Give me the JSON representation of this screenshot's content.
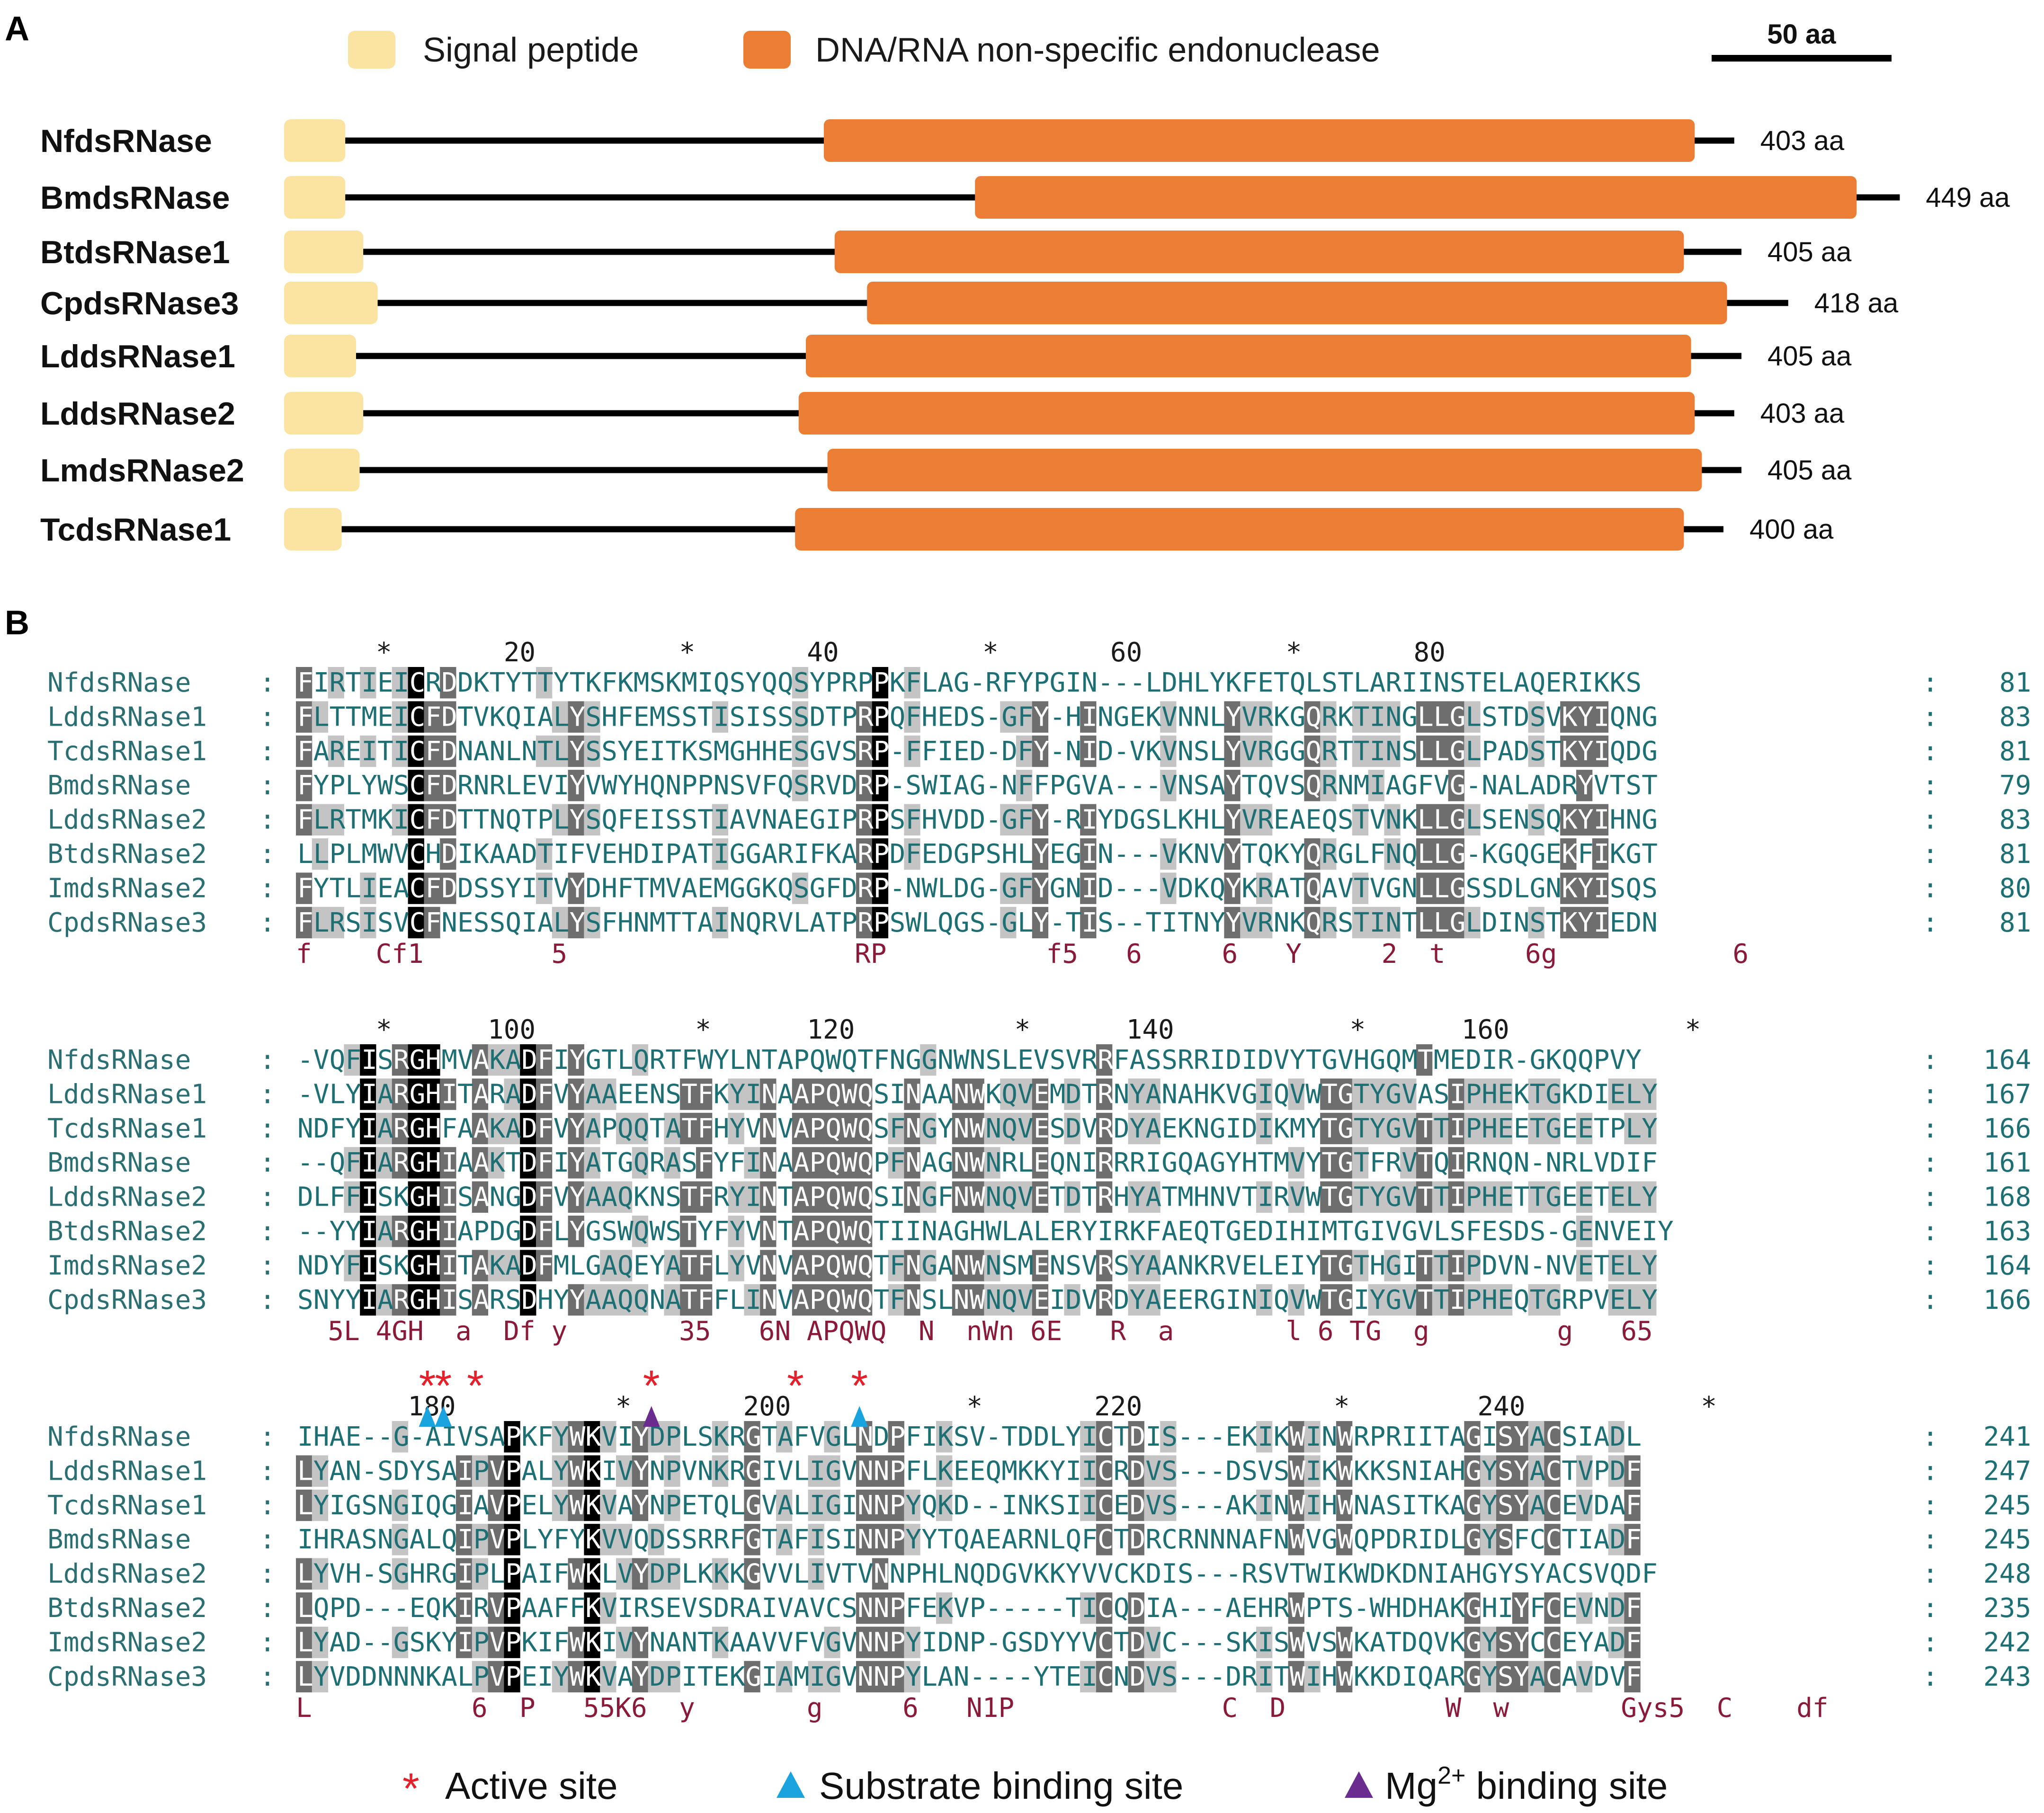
{
  "panel_a": {
    "label": "A",
    "legend": {
      "signal": {
        "label": "Signal peptide",
        "color": "#fbe3a1"
      },
      "domain": {
        "label": "DNA/RNA non-specific endonuclease",
        "color": "#ec7d35"
      }
    },
    "scale_bar": {
      "label": "50 aa",
      "length_aa": 50
    },
    "proteins": [
      {
        "name": "NfdsRNase",
        "length_label": "403 aa",
        "length_aa": 403,
        "signal": [
          1,
          17
        ],
        "domain": [
          151,
          392
        ]
      },
      {
        "name": "BmdsRNase",
        "length_label": "449 aa",
        "length_aa": 449,
        "signal": [
          1,
          17
        ],
        "domain": [
          193,
          437
        ]
      },
      {
        "name": "BtdsRNase1",
        "length_label": "405 aa",
        "length_aa": 405,
        "signal": [
          1,
          22
        ],
        "domain": [
          154,
          389
        ]
      },
      {
        "name": "CpdsRNase3",
        "length_label": "418 aa",
        "length_aa": 418,
        "signal": [
          1,
          26
        ],
        "domain": [
          163,
          401
        ]
      },
      {
        "name": "LddsRNase1",
        "length_label": "405 aa",
        "length_aa": 405,
        "signal": [
          1,
          20
        ],
        "domain": [
          146,
          391
        ]
      },
      {
        "name": "LddsRNase2",
        "length_label": "403 aa",
        "length_aa": 403,
        "signal": [
          1,
          22
        ],
        "domain": [
          144,
          392
        ]
      },
      {
        "name": "LmdsRNase2",
        "length_label": "405 aa",
        "length_aa": 405,
        "signal": [
          1,
          21
        ],
        "domain": [
          152,
          394
        ]
      },
      {
        "name": "TcdsRNase1",
        "length_label": "400 aa",
        "length_aa": 400,
        "signal": [
          1,
          16
        ],
        "domain": [
          143,
          389
        ]
      }
    ]
  },
  "panel_b": {
    "label": "B",
    "blocks": [
      {
        "ruler": "*       20         *       40         *       60         *       80",
        "rows": [
          {
            "name": "NfdsRNase",
            "seq": "FIRTIEICRDDKTYTTYTKFKMSKMIQSYQQSYPRPPKFLAG-RFYPGIN---LDHLYKFETQLSTLARIINSTELAQERIKKS",
            "end": "81"
          },
          {
            "name": "LddsRNase1",
            "seq": "FLTTMEICFDTVKQIALYSHFEMSSTISISSSDTPRPQFHEDS-GFY-HINGEKVNNLYVRKGQRKTINGLLGLSTDSVKYIQNG",
            "end": "83"
          },
          {
            "name": "TcdsRNase1",
            "seq": "FAREITICFDNANLNTLYSSYEITKSMGHHESGVSRP-FFIED-DFY-NID-VKVNSLYVRGGQRTTINSLLGLPADSTKYIQDG",
            "end": "81"
          },
          {
            "name": "BmdsRNase",
            "seq": "FYPLYWSCFDRNRLEVIYVWYHQNPPNSVFQSRVDRP-SWIAG-NFFPGVA---VNSAYTQVSQRNMIAGFVG-NALADRYVTST",
            "end": "79"
          },
          {
            "name": "LddsRNase2",
            "seq": "FLRTMKICFDTTNQTPLYSQFEISSTIAVNAEGIPRPSFHVDD-GFY-RIYDGSLKHLYVREAEQSTVNKLLGLSENSQKYIHNG",
            "end": "83"
          },
          {
            "name": "BtdsRNase2",
            "seq": "LLPLMWVCHDIKAADTIFVEHDIPATIGGARIFKARPDFEDGPSHLYEGIN---VKNVYTQKYQRGLFNQLLG-KGQGEKFIKGT",
            "end": "81"
          },
          {
            "name": "ImdsRNase2",
            "seq": "FYTLIEACFDDSSYITVYDHFTMVAEMGGKQSGFDRP-NWLDG-GFYGNID---VDKQYKRATQAVTVGNLLGSSDLGNKYISQS",
            "end": "80"
          },
          {
            "name": "CpdsRNase3",
            "seq": "FLRSISVCFNESSQIALYSFHNMTTAINQRVLATPRPSWLQGS-GLY-TIS--TITNYYVRNKQRSTINTLLGLDINSTKYIEDN",
            "end": "81"
          }
        ],
        "consensus": "f    Cf1        5                  RP          f5   6     6   Y     2  t     6g           6"
      },
      {
        "ruler": "*      100          *      120          *      140           *      160           *",
        "rows": [
          {
            "name": "NfdsRNase",
            "seq": "-VQFISRGHMVAKADFIYGTLQRTFWYLNTAPQWQTFNGGNWNSLEVSVRRFASSRRIDIDVYTGVHGQMTMEDIR-GKQQPVY",
            "end": "164"
          },
          {
            "name": "LddsRNase1",
            "seq": "-VLYIARGHITARADFVYAAEENSTFKYINAAPQWQSINAANWKQVEMDTRNYANAHKVGIQVWTGTYGVASIPHEKTGKDIELY",
            "end": "167"
          },
          {
            "name": "TcdsRNase1",
            "seq": "NDFYIARGHFAAKADFVYAPQQTATFHYVNVAPQWQSFNGYNWNQVESDVRDYAEKNGIDIKMYTGTYGVTTIPHEETGEETPLY",
            "end": "166"
          },
          {
            "name": "BmdsRNase",
            "seq": "--QFIARGHIAAKTDFIYATGQRASFYFINAAPQWQPFNAGNWNRLEQNIRRRIGQAGYHTMVYTGTFRVTQIRNQN-NRLVDIF",
            "end": "161"
          },
          {
            "name": "LddsRNase2",
            "seq": "DLFFISKGHISANGDFVYAAQKNSTFRYINTAPQWQSINGFNWNQVETDTRHYATMHNVTIRVWTGTYGVTTIPHETTGEETELY",
            "end": "168"
          },
          {
            "name": "BtdsRNase2",
            "seq": "--YYIARGHIAPDGDFLYGSWQWSTYFYVNTAPQWQTIINAGHWLALERYIRKFAEQTGEDIHIMTGIVGVLSFESDS-GENVEIY",
            "end": "163"
          },
          {
            "name": "ImdsRNase2",
            "seq": "NDYFISKGHITAKADFMLGAQEYATFLYVNVAPQWQTFNGANWNSMENSVRSYAANKRVELEIYTGTHGITTIPDVN-NVETELY",
            "end": "164"
          },
          {
            "name": "CpdsRNase3",
            "seq": "SNYYIARGHISARSDHYYAAQQNATFFLINVAPQWQTFNSLNWNQVEIDVRDYAEERGINIQVWTGIYGVTTIPHEQTGRPVELY",
            "end": "166"
          }
        ],
        "consensus": "  5L 4GH  a  Df y       35   6N APQWQ  N  nWn 6E   R  a       l 6 TG  g        g   65"
      },
      {
        "ruler": "  180          *       200           *       220            *        240           *",
        "rows": [
          {
            "name": "NfdsRNase",
            "seq": "IHAE--G-AIVSAPKFYWKVIYDPLSKRGTAFVGLNDPFIKSV-TDDLYICTDIS---EKIKWINWRPRIITAGISYACSIADL",
            "end": "241"
          },
          {
            "name": "LddsRNase1",
            "seq": "LYAN-SDYSAIPVPALYWKIVYNPVNKRGIVLIGVNNPFLKEEQMKKYIICRDVS---DSVSWIKWKKSNIAHGYSYACTVPDF",
            "end": "247"
          },
          {
            "name": "TcdsRNase1",
            "seq": "LYIGSNGIQGIAVPELYWKVAYNPETQLGVALIGINNPYQKD--INKSIICEDVS---AKINWIHWNASITKAGYSYACEVDAF",
            "end": "245"
          },
          {
            "name": "BmdsRNase",
            "seq": "IHRASNGALQIPVPLYFYKVVQDSSRRFGTAFISINNPYYTQAEARNLQFCTDRCRNNNAFNWVGWQPDRIDLGYSFCCTIADF",
            "end": "245"
          },
          {
            "name": "LddsRNase2",
            "seq": "LYVH-SGHRGIPLPAIFWKLVYDPLKKKGVVLIVTVNNPHLNQDGVKKYVVCKDIS---RSVTWIKWDKDNIAHGYSYACSVQDF",
            "end": "248"
          },
          {
            "name": "BtdsRNase2",
            "seq": "LQPD---EQKIRVPAAFFKVIRSEVSDRAIVAVCSNNPFEKVP-----TICQDIA---AEHRWPTS-WHDHAKGHIYFCEVNDF",
            "end": "235"
          },
          {
            "name": "ImdsRNase2",
            "seq": "LYAD--GSKYIPVPKIFWKIVYNANTKAAVVFVGVNNPYIDNP-GSDYYVCTDVC---SKISWVSWKATDQVKGYSYCCEYADF",
            "end": "242"
          },
          {
            "name": "CpdsRNase3",
            "seq": "LYVDDNNNKALPVPEIYWKVAYDPITEKGIAMIGVNNPYLAN----YTEICNDVS---DRITWIHWKKDIQARGYSYACAVDVF",
            "end": "243"
          }
        ],
        "consensus": "L          6  P   55K6  y       g     6   N1P             C  D          W  w       Gys5  C    df"
      }
    ],
    "legend": {
      "active": {
        "symbol": "*",
        "label": "Active site",
        "color": "#e4202a"
      },
      "substrate": {
        "symbol": "▲",
        "label": "Substrate binding site",
        "color": "#1ba3e0"
      },
      "mg": {
        "symbol": "▲",
        "label": "Mg",
        "sup": "2+",
        "label_suffix": " binding site",
        "color": "#6a2d8f"
      }
    }
  }
}
